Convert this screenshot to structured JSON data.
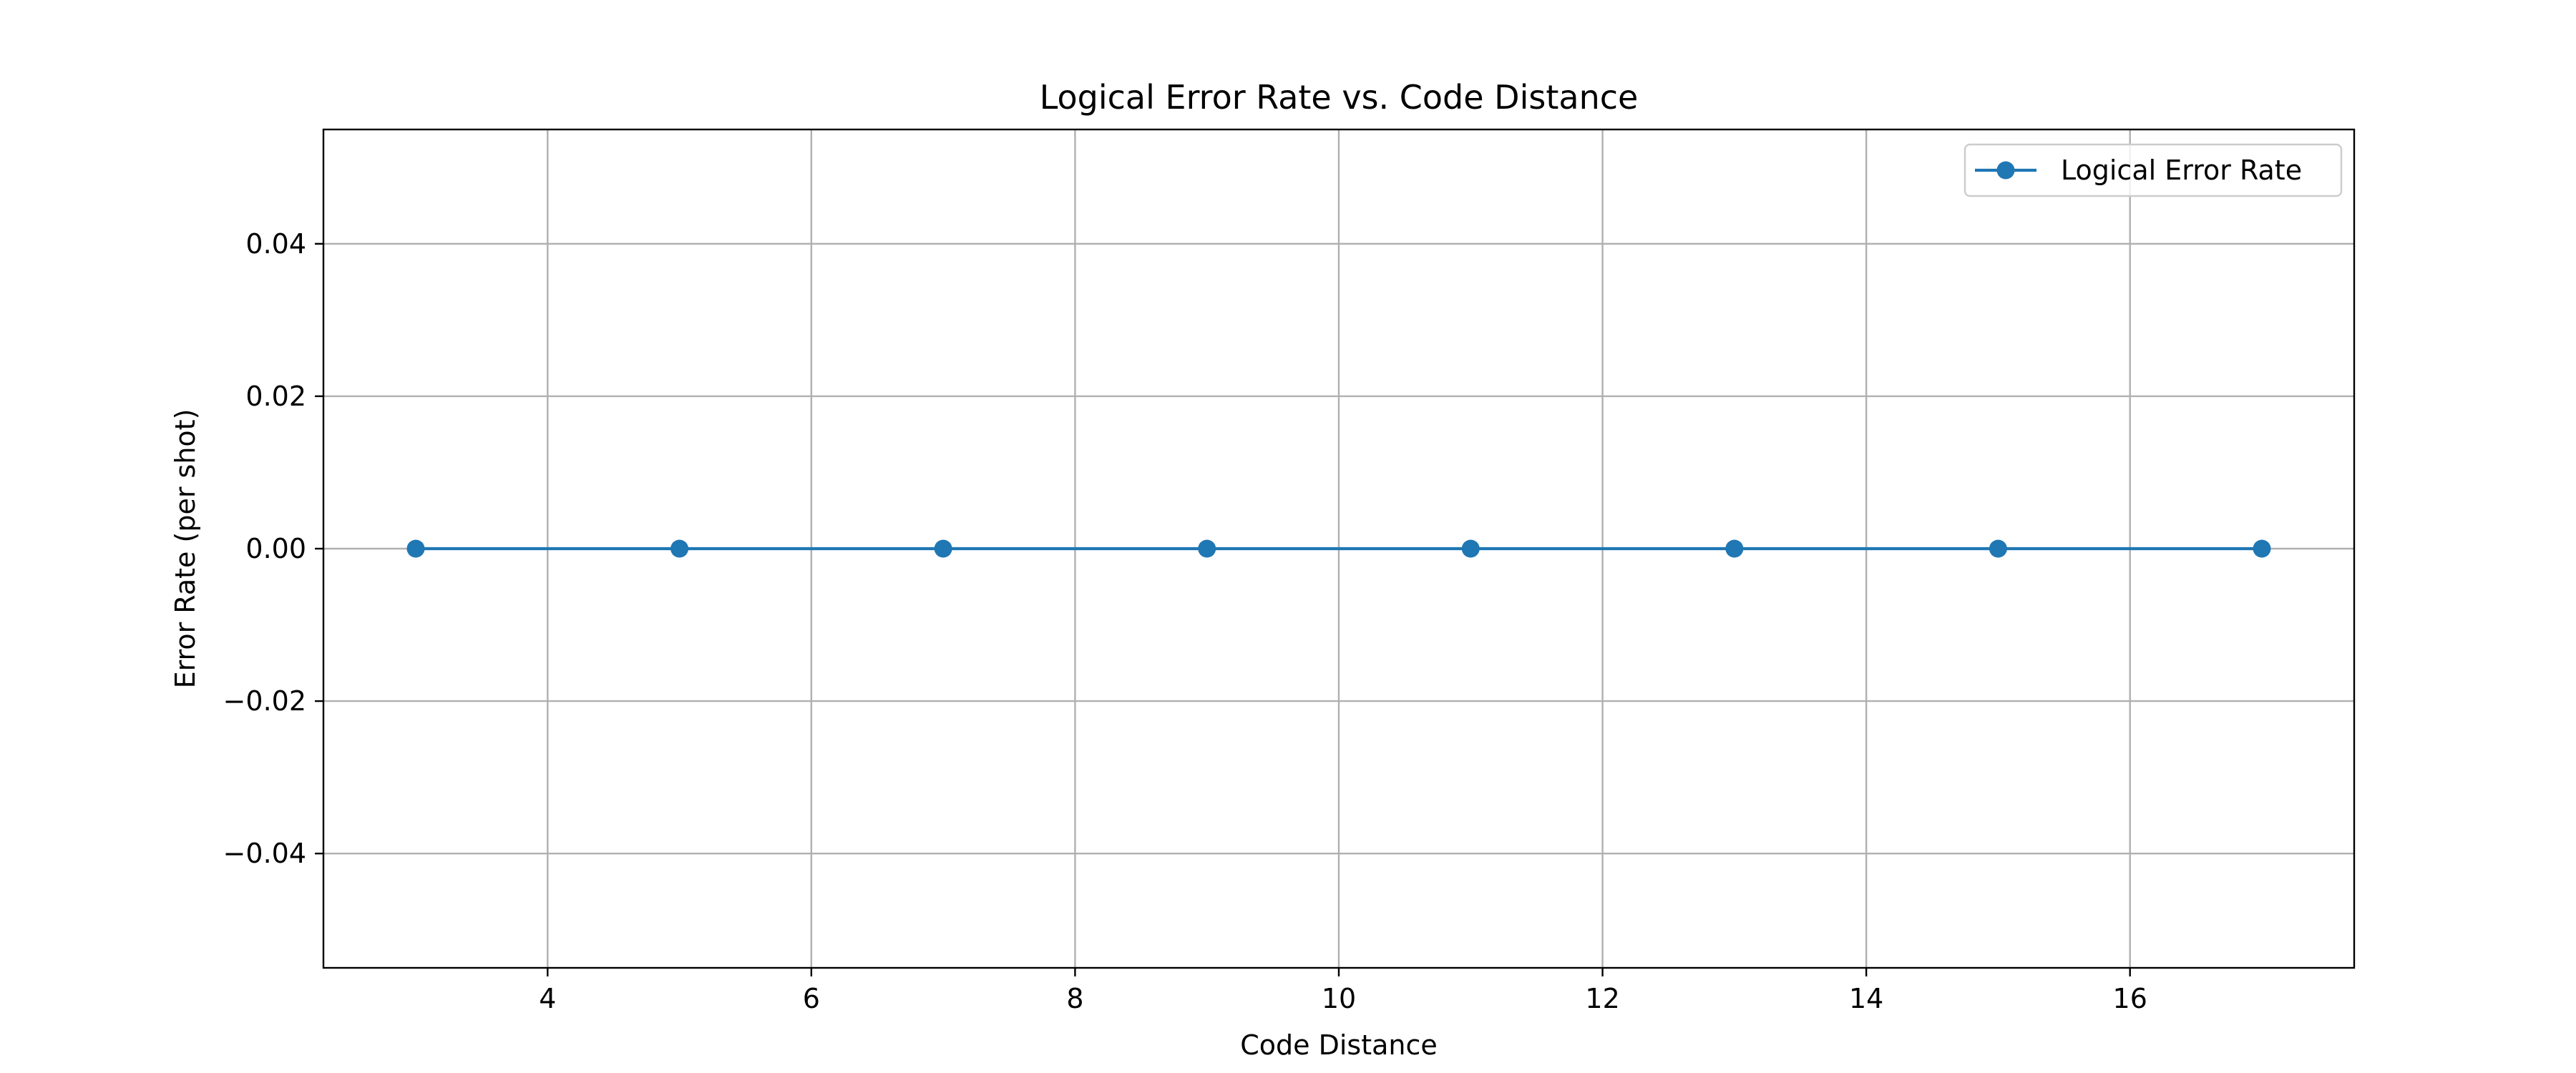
{
  "chart_data": {
    "type": "line",
    "title": "Logical Error Rate vs. Code Distance",
    "xlabel": "Code Distance",
    "ylabel": "Error Rate (per shot)",
    "xlim": [
      2.3,
      17.7
    ],
    "ylim": [
      -0.055,
      0.055
    ],
    "x_ticks": [
      4,
      6,
      8,
      10,
      12,
      14,
      16
    ],
    "y_ticks": [
      -0.04,
      -0.02,
      0.0,
      0.02,
      0.04
    ],
    "x_tick_labels": [
      "4",
      "6",
      "8",
      "10",
      "12",
      "14",
      "16"
    ],
    "y_tick_labels": [
      "−0.04",
      "−0.02",
      "0.00",
      "0.02",
      "0.04"
    ],
    "grid": true,
    "legend_position": "top-right",
    "series": [
      {
        "name": "Logical Error Rate",
        "color": "#1f77b4",
        "marker": "circle",
        "x": [
          3,
          5,
          7,
          9,
          11,
          13,
          15,
          17
        ],
        "y": [
          0,
          0,
          0,
          0,
          0,
          0,
          0,
          0
        ]
      }
    ]
  }
}
